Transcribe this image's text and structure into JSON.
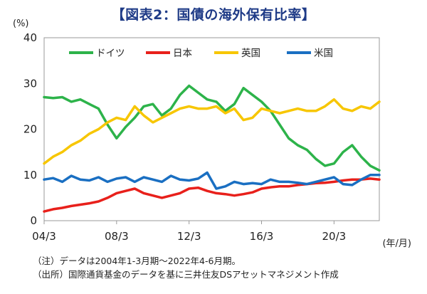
{
  "title": "【図表2：国債の海外保有比率】",
  "notes": [
    "（注）データは2004年1-3月期～2022年4-6月期。",
    "（出所）国際通貨基金のデータを基に三井住友DSアセットマネジメント作成"
  ],
  "chart_data": {
    "type": "line",
    "ylabel": "(%)",
    "xlabel": "(年/月)",
    "ylim": [
      0,
      40
    ],
    "yticks": [
      0,
      10,
      20,
      30,
      40
    ],
    "xlim": [
      2004.0,
      2022.5
    ],
    "xticks": [
      {
        "value": 2004.0,
        "label": "04/3"
      },
      {
        "value": 2008.0,
        "label": "08/3"
      },
      {
        "value": 2012.0,
        "label": "12/3"
      },
      {
        "value": 2016.0,
        "label": "16/3"
      },
      {
        "value": 2020.0,
        "label": "20/3"
      }
    ],
    "grid": false,
    "legend_position": "top",
    "series": [
      {
        "name": "ドイツ",
        "color": "#2db34a",
        "x": [
          2004.0,
          2004.5,
          2005.0,
          2005.5,
          2006.0,
          2006.5,
          2007.0,
          2007.5,
          2008.0,
          2008.5,
          2009.0,
          2009.5,
          2010.0,
          2010.5,
          2011.0,
          2011.5,
          2012.0,
          2012.5,
          2013.0,
          2013.5,
          2014.0,
          2014.5,
          2015.0,
          2015.5,
          2016.0,
          2016.5,
          2017.0,
          2017.5,
          2018.0,
          2018.5,
          2019.0,
          2019.5,
          2020.0,
          2020.5,
          2021.0,
          2021.5,
          2022.0,
          2022.5
        ],
        "y": [
          27.0,
          26.8,
          27.0,
          26.0,
          26.5,
          25.5,
          24.5,
          21.0,
          18.0,
          20.5,
          22.5,
          25.0,
          25.5,
          23.0,
          24.5,
          27.5,
          29.5,
          28.0,
          26.5,
          26.0,
          24.0,
          25.5,
          29.0,
          27.5,
          26.0,
          24.0,
          21.0,
          18.0,
          16.5,
          15.5,
          13.5,
          12.0,
          12.5,
          15.0,
          16.5,
          14.0,
          12.0,
          11.0
        ]
      },
      {
        "name": "日本",
        "color": "#e8201b",
        "x": [
          2004.0,
          2004.5,
          2005.0,
          2005.5,
          2006.0,
          2006.5,
          2007.0,
          2007.5,
          2008.0,
          2008.5,
          2009.0,
          2009.5,
          2010.0,
          2010.5,
          2011.0,
          2011.5,
          2012.0,
          2012.5,
          2013.0,
          2013.5,
          2014.0,
          2014.5,
          2015.0,
          2015.5,
          2016.0,
          2016.5,
          2017.0,
          2017.5,
          2018.0,
          2018.5,
          2019.0,
          2019.5,
          2020.0,
          2020.5,
          2021.0,
          2021.5,
          2022.0,
          2022.5
        ],
        "y": [
          2.0,
          2.5,
          2.8,
          3.2,
          3.5,
          3.8,
          4.2,
          5.0,
          6.0,
          6.5,
          7.0,
          6.0,
          5.5,
          5.0,
          5.5,
          6.0,
          7.0,
          7.2,
          6.5,
          6.0,
          5.8,
          5.5,
          5.8,
          6.2,
          7.0,
          7.3,
          7.5,
          7.5,
          7.8,
          8.0,
          8.2,
          8.3,
          8.5,
          8.8,
          9.0,
          9.0,
          9.2,
          9.0
        ]
      },
      {
        "name": "英国",
        "color": "#f7c600",
        "x": [
          2004.0,
          2004.5,
          2005.0,
          2005.5,
          2006.0,
          2006.5,
          2007.0,
          2007.5,
          2008.0,
          2008.5,
          2009.0,
          2009.5,
          2010.0,
          2010.5,
          2011.0,
          2011.5,
          2012.0,
          2012.5,
          2013.0,
          2013.5,
          2014.0,
          2014.5,
          2015.0,
          2015.5,
          2016.0,
          2016.5,
          2017.0,
          2017.5,
          2018.0,
          2018.5,
          2019.0,
          2019.5,
          2020.0,
          2020.5,
          2021.0,
          2021.5,
          2022.0,
          2022.5
        ],
        "y": [
          12.5,
          14.0,
          15.0,
          16.5,
          17.5,
          19.0,
          20.0,
          21.5,
          22.5,
          22.0,
          25.0,
          23.0,
          21.5,
          22.5,
          23.5,
          24.5,
          25.0,
          24.5,
          24.5,
          25.0,
          23.5,
          24.5,
          22.0,
          22.5,
          24.5,
          24.0,
          23.5,
          24.0,
          24.5,
          24.0,
          24.0,
          25.0,
          26.5,
          24.5,
          24.0,
          25.0,
          24.5,
          26.0
        ]
      },
      {
        "name": "米国",
        "color": "#1a6fc2",
        "x": [
          2004.0,
          2004.5,
          2005.0,
          2005.5,
          2006.0,
          2006.5,
          2007.0,
          2007.5,
          2008.0,
          2008.5,
          2009.0,
          2009.5,
          2010.0,
          2010.5,
          2011.0,
          2011.5,
          2012.0,
          2012.5,
          2013.0,
          2013.5,
          2014.0,
          2014.5,
          2015.0,
          2015.5,
          2016.0,
          2016.5,
          2017.0,
          2017.5,
          2018.0,
          2018.5,
          2019.0,
          2019.5,
          2020.0,
          2020.5,
          2021.0,
          2021.5,
          2022.0,
          2022.5
        ],
        "y": [
          9.0,
          9.3,
          8.5,
          9.8,
          9.0,
          8.8,
          9.5,
          8.5,
          9.2,
          9.5,
          8.5,
          9.5,
          9.0,
          8.5,
          9.8,
          9.0,
          8.8,
          9.2,
          10.5,
          7.0,
          7.5,
          8.5,
          8.0,
          8.2,
          8.0,
          9.0,
          8.5,
          8.5,
          8.3,
          8.0,
          8.5,
          9.0,
          9.5,
          8.0,
          7.8,
          9.0,
          10.0,
          10.0
        ]
      }
    ]
  }
}
